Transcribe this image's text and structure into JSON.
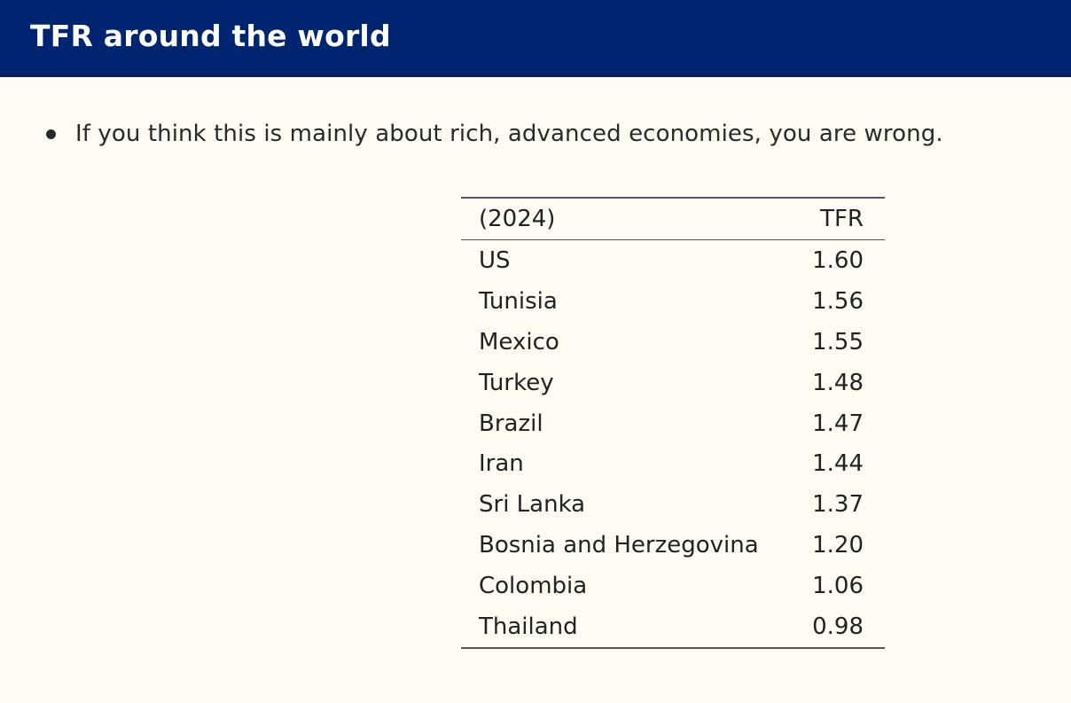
{
  "slide": {
    "title": "TFR around the world",
    "bullet": "If you think this is mainly about rich, advanced economies, you are wrong."
  },
  "table": {
    "headers": [
      "(2024)",
      "TFR"
    ],
    "rows": [
      {
        "country": "US",
        "tfr": "1.60"
      },
      {
        "country": "Tunisia",
        "tfr": "1.56"
      },
      {
        "country": "Mexico",
        "tfr": "1.55"
      },
      {
        "country": "Turkey",
        "tfr": "1.48"
      },
      {
        "country": "Brazil",
        "tfr": "1.47"
      },
      {
        "country": "Iran",
        "tfr": "1.44"
      },
      {
        "country": "Sri Lanka",
        "tfr": "1.37"
      },
      {
        "country": "Bosnia and Herzegovina",
        "tfr": "1.20"
      },
      {
        "country": "Colombia",
        "tfr": "1.06"
      },
      {
        "country": "Thailand",
        "tfr": "0.98"
      }
    ]
  },
  "colors": {
    "title_bar": "#002570",
    "background": "#fdfbf2",
    "title_text": "#ffffff"
  }
}
